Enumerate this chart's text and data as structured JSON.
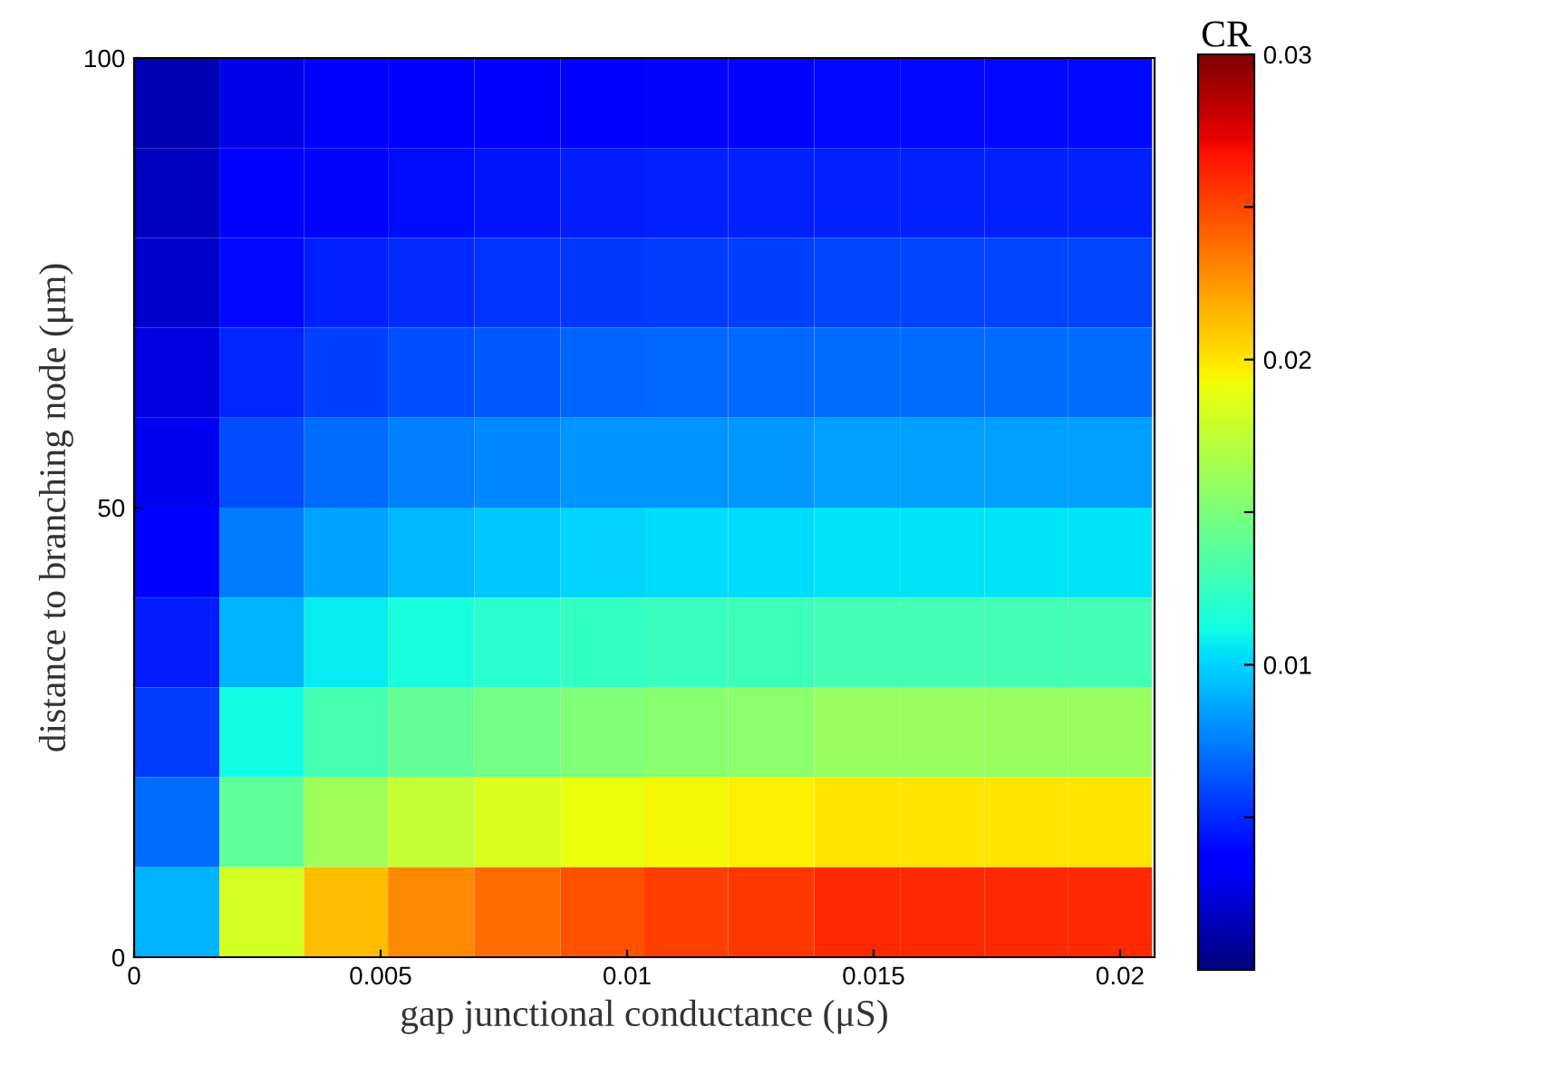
{
  "chart_data": {
    "type": "heatmap",
    "xlabel": "gap junctional conductance (μS)",
    "ylabel": "distance to branching node (μm)",
    "clabel": "CR",
    "x": [
      0.00086,
      0.0026,
      0.0043,
      0.006,
      0.0078,
      0.0095,
      0.0112,
      0.0129,
      0.0147,
      0.0164,
      0.0181,
      0.0198
    ],
    "y": [
      95,
      85,
      75,
      65,
      55,
      45,
      35,
      25,
      15,
      5
    ],
    "xlim": [
      0,
      0.0207
    ],
    "ylim": [
      0,
      100
    ],
    "xticks": [
      0,
      0.005,
      0.01,
      0.015,
      0.02
    ],
    "yticks": [
      0,
      50,
      100
    ],
    "clim": [
      0,
      0.03
    ],
    "cticks": [
      {
        "value": 0.005,
        "label": null
      },
      0.01,
      {
        "value": 0.015,
        "label": null
      },
      0.02,
      {
        "value": 0.025,
        "label": null
      },
      0.03
    ],
    "cells": [
      [
        0.0014,
        0.0028,
        0.0033,
        0.0035,
        0.0037,
        0.0038,
        0.0039,
        0.0039,
        0.004,
        0.004,
        0.004,
        0.004
      ],
      [
        0.0017,
        0.0034,
        0.0039,
        0.0042,
        0.0044,
        0.0046,
        0.0047,
        0.0047,
        0.0048,
        0.0048,
        0.0048,
        0.0048
      ],
      [
        0.002,
        0.0041,
        0.0048,
        0.0051,
        0.0053,
        0.0055,
        0.0056,
        0.0057,
        0.0058,
        0.0058,
        0.0058,
        0.0058
      ],
      [
        0.0025,
        0.0049,
        0.0057,
        0.0062,
        0.0064,
        0.0067,
        0.0068,
        0.0069,
        0.007,
        0.007,
        0.007,
        0.007
      ],
      [
        0.003,
        0.006,
        0.007,
        0.0075,
        0.0078,
        0.0081,
        0.0082,
        0.0083,
        0.0085,
        0.0085,
        0.0085,
        0.0085
      ],
      [
        0.0037,
        0.0074,
        0.0086,
        0.0092,
        0.0097,
        0.01,
        0.0102,
        0.0103,
        0.0105,
        0.0105,
        0.0105,
        0.0105
      ],
      [
        0.0046,
        0.0091,
        0.0107,
        0.0114,
        0.012,
        0.0124,
        0.0126,
        0.0127,
        0.013,
        0.013,
        0.013,
        0.013
      ],
      [
        0.0056,
        0.0112,
        0.0131,
        0.0141,
        0.0147,
        0.0152,
        0.0155,
        0.0157,
        0.016,
        0.016,
        0.016,
        0.016
      ],
      [
        0.007,
        0.014,
        0.0164,
        0.0176,
        0.0184,
        0.019,
        0.0194,
        0.0196,
        0.02,
        0.02,
        0.02,
        0.02
      ],
      [
        0.0091,
        0.0182,
        0.0213,
        0.0229,
        0.0239,
        0.0247,
        0.0252,
        0.0255,
        0.026,
        0.026,
        0.026,
        0.026
      ]
    ]
  }
}
